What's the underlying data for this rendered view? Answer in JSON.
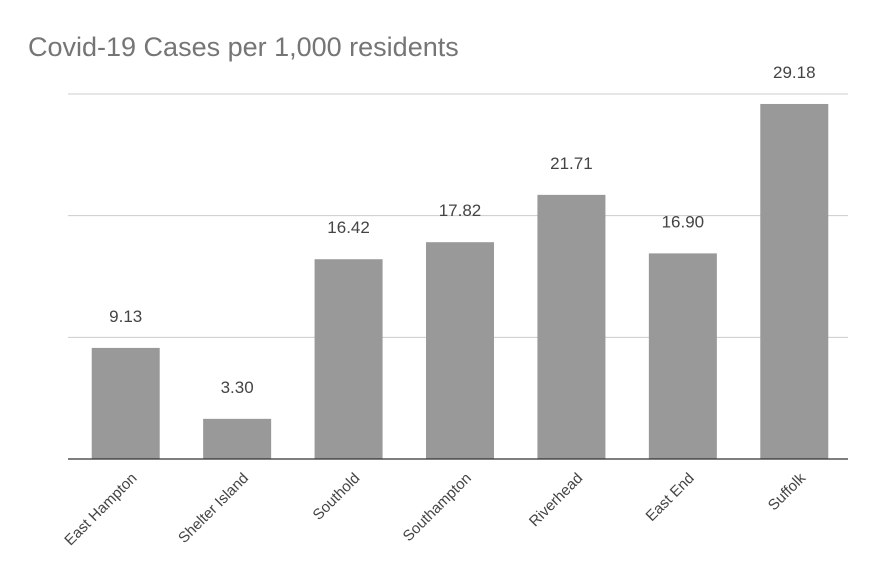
{
  "chart_data": {
    "type": "bar",
    "title": "Covid-19 Cases per 1,000 residents",
    "xlabel": "",
    "ylabel": "",
    "categories": [
      "East Hampton",
      "Shelter Island",
      "Southold",
      "Southampton",
      "Riverhead",
      "East End",
      "Suffolk"
    ],
    "values": [
      9.13,
      3.3,
      16.42,
      17.82,
      21.71,
      16.9,
      29.18
    ],
    "data_labels": [
      "9.13",
      "3.30",
      "16.42",
      "17.82",
      "21.71",
      "16.90",
      "29.18"
    ],
    "ylim": [
      0,
      30
    ],
    "gridlines": [
      0,
      10,
      20,
      30
    ],
    "grid": true,
    "legend": "none",
    "bar_color": "#999999"
  }
}
